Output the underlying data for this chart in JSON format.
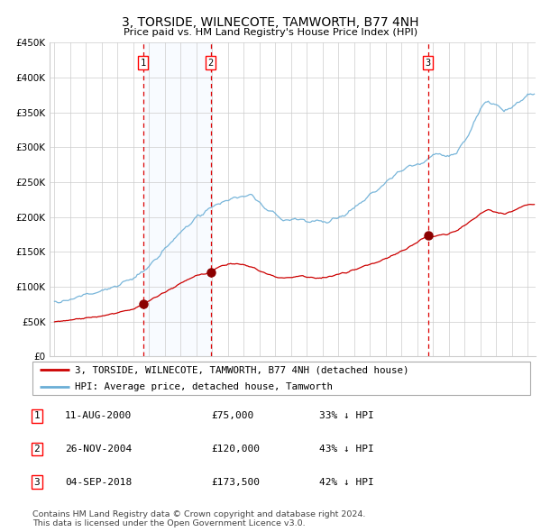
{
  "title": "3, TORSIDE, WILNECOTE, TAMWORTH, B77 4NH",
  "subtitle": "Price paid vs. HM Land Registry's House Price Index (HPI)",
  "ylim": [
    0,
    450000
  ],
  "yticks": [
    0,
    50000,
    100000,
    150000,
    200000,
    250000,
    300000,
    350000,
    400000,
    450000
  ],
  "ytick_labels": [
    "£0",
    "£50K",
    "£100K",
    "£150K",
    "£200K",
    "£250K",
    "£300K",
    "£350K",
    "£400K",
    "£450K"
  ],
  "year_start": 1995,
  "year_end": 2025,
  "hpi_line_color": "#6aaed6",
  "price_color": "#cc0000",
  "sale_marker_color": "#8b0000",
  "vline_color": "#dd0000",
  "shade_color": "#ddeeff",
  "background_color": "#ffffff",
  "grid_color": "#cccccc",
  "sale_dates_year": [
    2000.61,
    2004.9,
    2018.67
  ],
  "sale_prices": [
    75000,
    120000,
    173500
  ],
  "sale_labels": [
    "1",
    "2",
    "3"
  ],
  "legend_line1": "3, TORSIDE, WILNECOTE, TAMWORTH, B77 4NH (detached house)",
  "legend_line2": "HPI: Average price, detached house, Tamworth",
  "table_entries": [
    {
      "label": "1",
      "date": "11-AUG-2000",
      "price": "£75,000",
      "change": "33% ↓ HPI"
    },
    {
      "label": "2",
      "date": "26-NOV-2004",
      "price": "£120,000",
      "change": "43% ↓ HPI"
    },
    {
      "label": "3",
      "date": "04-SEP-2018",
      "price": "£173,500",
      "change": "42% ↓ HPI"
    }
  ],
  "footnote": "Contains HM Land Registry data © Crown copyright and database right 2024.\nThis data is licensed under the Open Government Licence v3.0.",
  "hpi_keypoints": [
    [
      1995.0,
      78000
    ],
    [
      1996.0,
      82000
    ],
    [
      1997.0,
      88000
    ],
    [
      1998.0,
      94000
    ],
    [
      1999.0,
      102000
    ],
    [
      2000.0,
      112000
    ],
    [
      2001.0,
      128000
    ],
    [
      2002.0,
      155000
    ],
    [
      2003.0,
      178000
    ],
    [
      2004.0,
      198000
    ],
    [
      2005.0,
      215000
    ],
    [
      2006.5,
      228000
    ],
    [
      2007.5,
      232000
    ],
    [
      2008.5,
      210000
    ],
    [
      2009.5,
      195000
    ],
    [
      2010.5,
      198000
    ],
    [
      2011.5,
      193000
    ],
    [
      2012.5,
      195000
    ],
    [
      2013.5,
      205000
    ],
    [
      2014.5,
      222000
    ],
    [
      2015.5,
      240000
    ],
    [
      2016.5,
      258000
    ],
    [
      2017.5,
      272000
    ],
    [
      2018.5,
      280000
    ],
    [
      2019.0,
      288000
    ],
    [
      2019.5,
      290000
    ],
    [
      2020.0,
      288000
    ],
    [
      2020.5,
      292000
    ],
    [
      2021.0,
      310000
    ],
    [
      2021.5,
      330000
    ],
    [
      2022.0,
      355000
    ],
    [
      2022.5,
      368000
    ],
    [
      2023.0,
      360000
    ],
    [
      2023.5,
      352000
    ],
    [
      2024.0,
      358000
    ],
    [
      2024.5,
      365000
    ],
    [
      2025.0,
      375000
    ]
  ],
  "price_keypoints": [
    [
      1995.0,
      50000
    ],
    [
      1996.0,
      52000
    ],
    [
      1997.0,
      55000
    ],
    [
      1998.0,
      58000
    ],
    [
      1999.0,
      63000
    ],
    [
      2000.0,
      68000
    ],
    [
      2000.61,
      75000
    ],
    [
      2001.0,
      80000
    ],
    [
      2002.0,
      92000
    ],
    [
      2003.0,
      105000
    ],
    [
      2004.0,
      116000
    ],
    [
      2004.9,
      120000
    ],
    [
      2005.0,
      122000
    ],
    [
      2005.5,
      130000
    ],
    [
      2006.0,
      132000
    ],
    [
      2006.5,
      133000
    ],
    [
      2007.0,
      131000
    ],
    [
      2007.5,
      128000
    ],
    [
      2008.0,
      122000
    ],
    [
      2008.5,
      118000
    ],
    [
      2009.0,
      114000
    ],
    [
      2009.5,
      112000
    ],
    [
      2010.0,
      113000
    ],
    [
      2010.5,
      115000
    ],
    [
      2011.0,
      114000
    ],
    [
      2011.5,
      112000
    ],
    [
      2012.0,
      113000
    ],
    [
      2012.5,
      115000
    ],
    [
      2013.0,
      118000
    ],
    [
      2013.5,
      120000
    ],
    [
      2014.0,
      124000
    ],
    [
      2014.5,
      128000
    ],
    [
      2015.0,
      132000
    ],
    [
      2015.5,
      136000
    ],
    [
      2016.0,
      140000
    ],
    [
      2016.5,
      145000
    ],
    [
      2017.0,
      150000
    ],
    [
      2017.5,
      158000
    ],
    [
      2018.0,
      164000
    ],
    [
      2018.67,
      173500
    ],
    [
      2019.0,
      172000
    ],
    [
      2019.5,
      174000
    ],
    [
      2020.0,
      176000
    ],
    [
      2020.5,
      180000
    ],
    [
      2021.0,
      188000
    ],
    [
      2021.5,
      196000
    ],
    [
      2022.0,
      205000
    ],
    [
      2022.5,
      210000
    ],
    [
      2023.0,
      207000
    ],
    [
      2023.5,
      204000
    ],
    [
      2024.0,
      208000
    ],
    [
      2024.5,
      213000
    ],
    [
      2025.0,
      218000
    ]
  ]
}
